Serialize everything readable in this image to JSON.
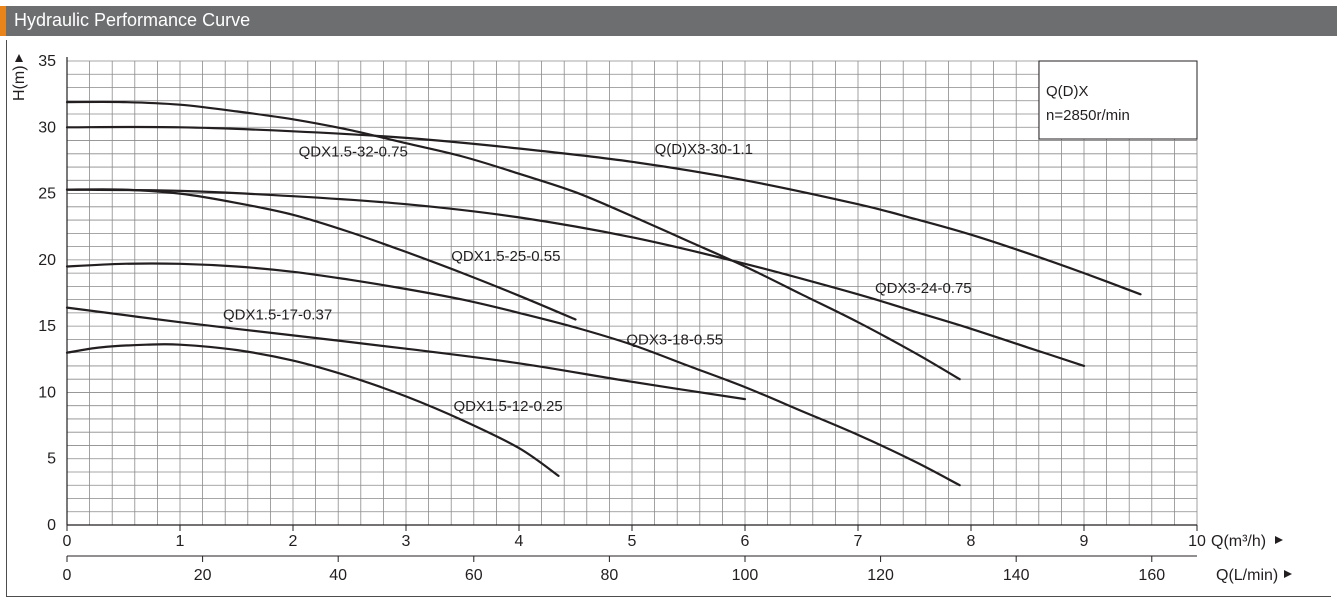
{
  "header": {
    "title": "Hydraulic Performance Curve"
  },
  "colors": {
    "header_bg": "#6d6e70",
    "accent": "#e8841a",
    "grid": "#8a8a8a",
    "curve": "#231f20"
  },
  "chart_data": {
    "type": "line",
    "x_axis": {
      "label": "Q(m³/h)",
      "range": [
        0,
        10
      ],
      "ticks": [
        0,
        1,
        2,
        3,
        4,
        5,
        6,
        7,
        8,
        9,
        10
      ]
    },
    "x2_axis": {
      "label": "Q(L/min)",
      "range": [
        0,
        166.67
      ],
      "ticks": [
        0,
        20,
        40,
        60,
        80,
        100,
        120,
        140,
        160
      ]
    },
    "y_axis": {
      "label": "H(m)",
      "range": [
        0,
        35
      ],
      "ticks": [
        0,
        5,
        10,
        15,
        20,
        25,
        30,
        35
      ]
    },
    "grid": true,
    "legend": {
      "line1": "Q(D)X",
      "line2": "n=2850r/min"
    },
    "series": [
      {
        "name": "QDX1.5-32-0.75",
        "x": [
          0,
          0.5,
          1,
          1.5,
          2,
          2.5,
          3,
          3.5,
          4,
          4.5,
          5,
          5.5,
          6,
          6.5,
          7,
          7.5,
          7.9
        ],
        "y": [
          31.9,
          31.9,
          31.7,
          31.2,
          30.6,
          29.8,
          28.8,
          27.8,
          26.5,
          25.1,
          23.3,
          21.4,
          19.5,
          17.4,
          15.3,
          13.0,
          11.0
        ]
      },
      {
        "name": "Q(D)X3-30-1.1",
        "x": [
          0,
          1,
          2,
          3,
          4,
          5,
          6,
          7,
          7.5,
          8,
          8.5,
          9,
          9.5
        ],
        "y": [
          30.0,
          30.0,
          29.7,
          29.2,
          28.4,
          27.4,
          26.0,
          24.2,
          23.1,
          21.9,
          20.5,
          19.0,
          17.4
        ]
      },
      {
        "name": "QDX1.5-25-0.55",
        "x": [
          0,
          0.5,
          1,
          1.5,
          2,
          2.5,
          3,
          3.5,
          4,
          4.5
        ],
        "y": [
          25.3,
          25.3,
          25.0,
          24.3,
          23.4,
          22.1,
          20.6,
          19.0,
          17.3,
          15.5
        ]
      },
      {
        "name": "QDX3-24-0.75",
        "x": [
          0,
          1,
          2,
          3,
          4,
          5,
          6,
          7,
          7.5,
          8,
          8.5,
          9
        ],
        "y": [
          25.3,
          25.2,
          24.8,
          24.2,
          23.2,
          21.7,
          19.7,
          17.4,
          16.1,
          14.8,
          13.4,
          12.0
        ]
      },
      {
        "name": "QDX3-18-0.55",
        "x": [
          0,
          0.5,
          1,
          1.5,
          2,
          2.5,
          3,
          3.5,
          4,
          4.5,
          5,
          5.5,
          6,
          6.5,
          7,
          7.5,
          7.9
        ],
        "y": [
          19.5,
          19.7,
          19.7,
          19.5,
          19.1,
          18.5,
          17.8,
          17.0,
          16.0,
          14.9,
          13.6,
          12.0,
          10.4,
          8.6,
          6.8,
          4.8,
          3.0
        ]
      },
      {
        "name": "QDX1.5-17-0.37",
        "x": [
          0,
          1,
          2,
          3,
          4,
          5,
          6
        ],
        "y": [
          16.4,
          15.3,
          14.3,
          13.3,
          12.2,
          10.8,
          9.5
        ]
      },
      {
        "name": "QDX1.5-12-0.25",
        "x": [
          0,
          0.3,
          0.7,
          1,
          1.5,
          2,
          2.5,
          3,
          3.5,
          4,
          4.35
        ],
        "y": [
          13.0,
          13.4,
          13.6,
          13.6,
          13.2,
          12.4,
          11.2,
          9.7,
          7.9,
          5.8,
          3.7
        ]
      }
    ],
    "annotations": [
      {
        "text": "QDX1.5-32-0.75",
        "x": 2.05,
        "y": 27.8
      },
      {
        "text": "Q(D)X3-30-1.1",
        "x": 5.2,
        "y": 28.0
      },
      {
        "text": "QDX1.5-25-0.55",
        "x": 3.4,
        "y": 19.9
      },
      {
        "text": "QDX3-24-0.75",
        "x": 7.15,
        "y": 17.5
      },
      {
        "text": "QDX3-18-0.55",
        "x": 4.95,
        "y": 13.6
      },
      {
        "text": "QDX1.5-17-0.37",
        "x": 1.38,
        "y": 15.5
      },
      {
        "text": "QDX1.5-12-0.25",
        "x": 3.42,
        "y": 8.6
      }
    ]
  }
}
